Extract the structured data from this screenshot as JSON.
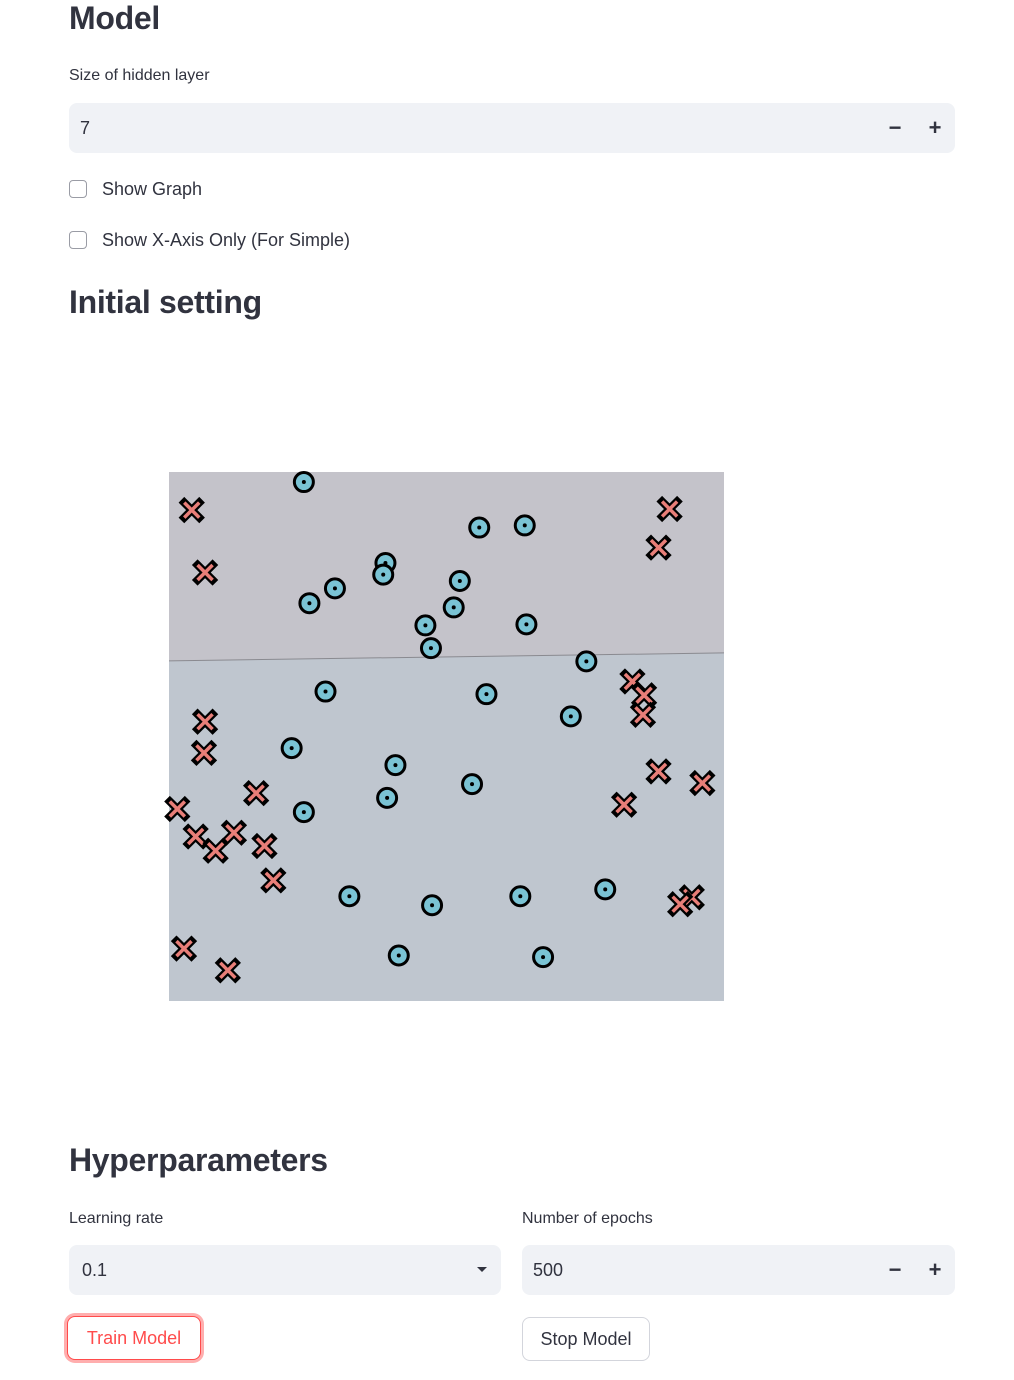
{
  "model": {
    "heading": "Model",
    "hidden_label": "Size of hidden layer",
    "hidden_value": "7",
    "minus": "−",
    "plus": "+",
    "checkbox_graph": "Show Graph",
    "checkbox_xaxis": "Show X-Axis Only (For Simple)"
  },
  "initial": {
    "heading": "Initial setting"
  },
  "hyper": {
    "heading": "Hyperparameters",
    "lr_label": "Learning rate",
    "lr_value": "0.1",
    "epochs_label": "Number of epochs",
    "epochs_value": "500",
    "minus": "−",
    "plus": "+",
    "train_label": "Train Model",
    "stop_label": "Stop Model"
  },
  "chart_data": {
    "type": "scatter",
    "title": "",
    "xlabel": "",
    "ylabel": "",
    "grid": false,
    "axes_visible": false,
    "xlim": [
      0,
      1
    ],
    "ylim": [
      0,
      1
    ],
    "region_colors": {
      "upper": "#c4c3ca",
      "lower": "#bfc6cf"
    },
    "boundary": {
      "x": [
        0,
        1
      ],
      "y": [
        0.643,
        0.658
      ]
    },
    "series": [
      {
        "marker": "circle",
        "color": "#7ac3d4",
        "points": [
          [
            0.243,
            0.981
          ],
          [
            0.559,
            0.895
          ],
          [
            0.641,
            0.899
          ],
          [
            0.39,
            0.828
          ],
          [
            0.386,
            0.806
          ],
          [
            0.524,
            0.794
          ],
          [
            0.299,
            0.78
          ],
          [
            0.253,
            0.752
          ],
          [
            0.513,
            0.744
          ],
          [
            0.644,
            0.712
          ],
          [
            0.462,
            0.71
          ],
          [
            0.472,
            0.667
          ],
          [
            0.752,
            0.642
          ],
          [
            0.282,
            0.585
          ],
          [
            0.572,
            0.58
          ],
          [
            0.724,
            0.538
          ],
          [
            0.221,
            0.478
          ],
          [
            0.408,
            0.446
          ],
          [
            0.546,
            0.41
          ],
          [
            0.393,
            0.384
          ],
          [
            0.243,
            0.357
          ],
          [
            0.325,
            0.198
          ],
          [
            0.474,
            0.181
          ],
          [
            0.633,
            0.198
          ],
          [
            0.786,
            0.211
          ],
          [
            0.414,
            0.086
          ],
          [
            0.674,
            0.083
          ]
        ]
      },
      {
        "marker": "x",
        "color": "#e87e78",
        "points": [
          [
            0.041,
            0.928
          ],
          [
            0.902,
            0.93
          ],
          [
            0.882,
            0.857
          ],
          [
            0.065,
            0.81
          ],
          [
            0.835,
            0.604
          ],
          [
            0.856,
            0.578
          ],
          [
            0.854,
            0.541
          ],
          [
            0.065,
            0.528
          ],
          [
            0.063,
            0.469
          ],
          [
            0.882,
            0.434
          ],
          [
            0.961,
            0.412
          ],
          [
            0.157,
            0.393
          ],
          [
            0.82,
            0.371
          ],
          [
            0.015,
            0.363
          ],
          [
            0.048,
            0.311
          ],
          [
            0.117,
            0.318
          ],
          [
            0.084,
            0.284
          ],
          [
            0.172,
            0.293
          ],
          [
            0.188,
            0.228
          ],
          [
            0.942,
            0.196
          ],
          [
            0.921,
            0.183
          ],
          [
            0.027,
            0.099
          ],
          [
            0.106,
            0.058
          ]
        ]
      }
    ]
  }
}
